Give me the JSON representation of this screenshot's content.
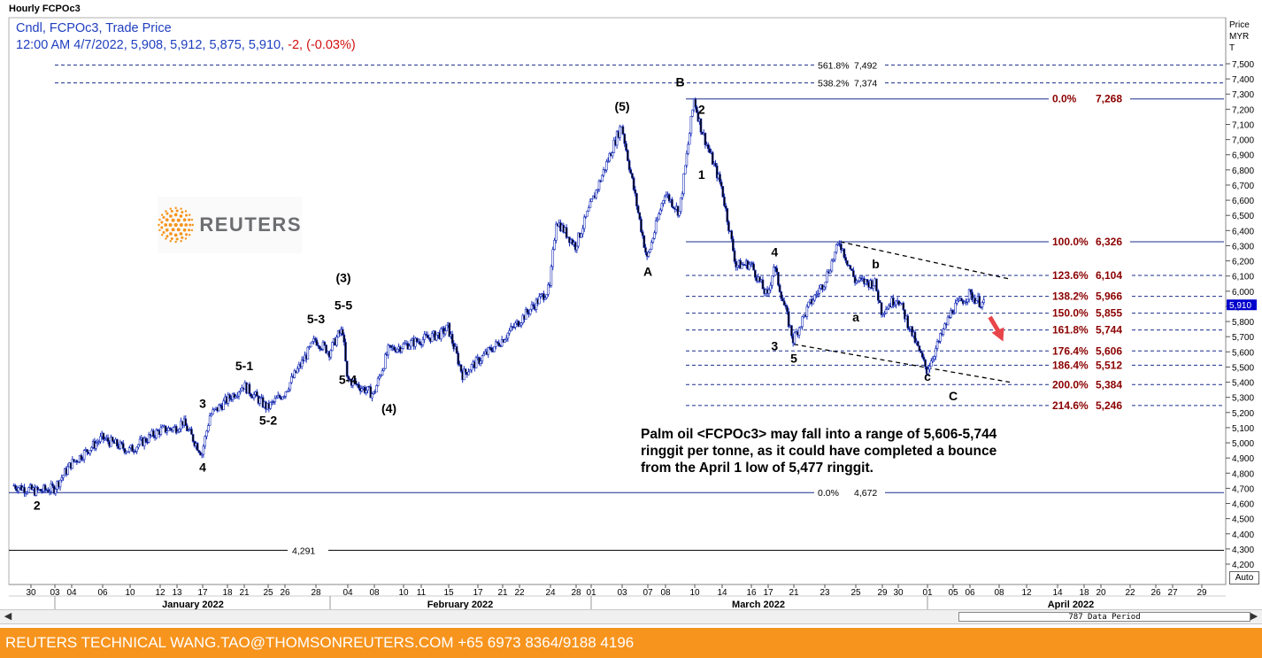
{
  "header": {
    "window_title": "Hourly FCPOc3",
    "line1": "Cndl, FCPOc3, Trade Price",
    "line2_values": "12:00 AM 4/7/2022, 5,908, 5,912, 5,875, 5,910,",
    "line2_change": " -2, (-0.03%)"
  },
  "price_axis_header": [
    "Price",
    "MYR",
    "T"
  ],
  "logo_text": "REUTERS",
  "annotation_lines": [
    "Palm oil <FCPOc3> may fall into a range of 5,606-5,744",
    "ringgit per tonne, as it could have completed a bounce",
    "from the April 1 low of 5,477 ringgit."
  ],
  "footer_text": "REUTERS TECHNICAL  WANG.TAO@THOMSONREUTERS.COM  +65 6973 8364/9188 4196",
  "scroll": {
    "period_label": "787 Data Period",
    "left_arrow": "◀",
    "right_arrow": "▶"
  },
  "auto_label": "Auto",
  "colors": {
    "candle": "#1a2fb8",
    "fib_label": "#8b0000",
    "footer": "#f7941d",
    "current_price_box": "#0000cc",
    "arrow": "#e8454a"
  },
  "chart_data": {
    "type": "candlestick",
    "interval": "hourly",
    "symbol": "FCPOc3",
    "y_unit": "MYR/T",
    "ylim": [
      4100,
      7650
    ],
    "y_ticks": [
      4200,
      4300,
      4400,
      4500,
      4600,
      4700,
      4800,
      4900,
      5000,
      5100,
      5200,
      5300,
      5400,
      5500,
      5600,
      5700,
      5800,
      5900,
      6000,
      6100,
      6200,
      6300,
      6400,
      6500,
      6600,
      6700,
      6800,
      6900,
      7000,
      7100,
      7200,
      7300,
      7400,
      7500
    ],
    "y_tick_labels": [
      "4,200",
      "4,300",
      "4,400",
      "4,500",
      "4,600",
      "4,700",
      "4,800",
      "4,900",
      "5,000",
      "5,100",
      "5,200",
      "5,300",
      "5,400",
      "5,500",
      "5,600",
      "5,700",
      "5,800",
      "5,900",
      "6,000",
      "6,100",
      "6,200",
      "6,300",
      "6,400",
      "6,500",
      "6,600",
      "6,700",
      "6,800",
      "6,900",
      "7,000",
      "7,100",
      "7,200",
      "7,300",
      "7,400",
      "7,500"
    ],
    "current_price": {
      "value": 5910,
      "label": "5,910"
    },
    "x_day_ticks": [
      "30",
      "03",
      "04",
      "06",
      "10",
      "12",
      "13",
      "17",
      "18",
      "21",
      "25",
      "26",
      "28",
      "04",
      "08",
      "10",
      "11",
      "15",
      "17",
      "21",
      "22",
      "24",
      "28",
      "01",
      "03",
      "07",
      "08",
      "10",
      "14",
      "16",
      "17",
      "21",
      "23",
      "25",
      "29",
      "30",
      "01",
      "05",
      "06",
      "08",
      "12",
      "14",
      "18",
      "20",
      "22",
      "26",
      "27",
      "29"
    ],
    "x_month_labels": [
      "January 2022",
      "February 2022",
      "March 2022",
      "April 2022"
    ],
    "price_path": [
      {
        "date": "2021-12-30",
        "price": 4720
      },
      {
        "date": "2021-12-31",
        "price": 4680
      },
      {
        "date": "2022-01-03",
        "price": 4700
      },
      {
        "date": "2022-01-04",
        "price": 4860
      },
      {
        "date": "2022-01-06",
        "price": 5030
      },
      {
        "date": "2022-01-10",
        "price": 4950
      },
      {
        "date": "2022-01-12",
        "price": 5080
      },
      {
        "date": "2022-01-13",
        "price": 5100
      },
      {
        "date": "2022-01-14",
        "price": 5140
      },
      {
        "date": "2022-01-17",
        "price": 4930
      },
      {
        "date": "2022-01-18",
        "price": 5180
      },
      {
        "date": "2022-01-21",
        "price": 5380
      },
      {
        "date": "2022-01-25",
        "price": 5230
      },
      {
        "date": "2022-01-26",
        "price": 5330
      },
      {
        "date": "2022-01-28",
        "price": 5680
      },
      {
        "date": "2022-01-31",
        "price": 5600
      },
      {
        "date": "2022-02-02",
        "price": 5710
      },
      {
        "date": "2022-02-03",
        "price": 5740
      },
      {
        "date": "2022-02-04",
        "price": 5420
      },
      {
        "date": "2022-02-08",
        "price": 5320
      },
      {
        "date": "2022-02-09",
        "price": 5610
      },
      {
        "date": "2022-02-14",
        "price": 5720
      },
      {
        "date": "2022-02-15",
        "price": 5760
      },
      {
        "date": "2022-02-16",
        "price": 5450
      },
      {
        "date": "2022-02-21",
        "price": 5680
      },
      {
        "date": "2022-02-24",
        "price": 6020
      },
      {
        "date": "2022-02-25",
        "price": 6470
      },
      {
        "date": "2022-02-28",
        "price": 6300
      },
      {
        "date": "2022-03-03",
        "price": 7100
      },
      {
        "date": "2022-03-04",
        "price": 6880
      },
      {
        "date": "2022-03-07",
        "price": 6210
      },
      {
        "date": "2022-03-08",
        "price": 6650
      },
      {
        "date": "2022-03-09",
        "price": 6520
      },
      {
        "date": "2022-03-10",
        "price": 7268
      },
      {
        "date": "2022-03-11",
        "price": 7080
      },
      {
        "date": "2022-03-14",
        "price": 6690
      },
      {
        "date": "2022-03-15",
        "price": 6170
      },
      {
        "date": "2022-03-16",
        "price": 6180
      },
      {
        "date": "2022-03-17",
        "price": 5960
      },
      {
        "date": "2022-03-18",
        "price": 6170
      },
      {
        "date": "2022-03-21",
        "price": 5680
      },
      {
        "date": "2022-03-22",
        "price": 5900
      },
      {
        "date": "2022-03-23",
        "price": 6060
      },
      {
        "date": "2022-03-24",
        "price": 6326
      },
      {
        "date": "2022-03-25",
        "price": 6070
      },
      {
        "date": "2022-03-28",
        "price": 6050
      },
      {
        "date": "2022-03-29",
        "price": 5870
      },
      {
        "date": "2022-03-30",
        "price": 5960
      },
      {
        "date": "2022-03-31",
        "price": 5720
      },
      {
        "date": "2022-04-01",
        "price": 5477
      },
      {
        "date": "2022-04-05",
        "price": 5880
      },
      {
        "date": "2022-04-06",
        "price": 5980
      },
      {
        "date": "2022-04-07",
        "price": 5910
      }
    ],
    "fib_levels_right": [
      {
        "pct": "0.0%",
        "price": 7268,
        "label": "7,268"
      },
      {
        "pct": "100.0%",
        "price": 6326,
        "label": "6,326"
      },
      {
        "pct": "123.6%",
        "price": 6104,
        "label": "6,104"
      },
      {
        "pct": "138.2%",
        "price": 5966,
        "label": "5,966"
      },
      {
        "pct": "150.0%",
        "price": 5855,
        "label": "5,855"
      },
      {
        "pct": "161.8%",
        "price": 5744,
        "label": "5,744"
      },
      {
        "pct": "176.4%",
        "price": 5606,
        "label": "5,606"
      },
      {
        "pct": "186.4%",
        "price": 5512,
        "label": "5,512"
      },
      {
        "pct": "200.0%",
        "price": 5384,
        "label": "5,384"
      },
      {
        "pct": "214.6%",
        "price": 5246,
        "label": "5,246"
      }
    ],
    "fib_levels_upper": [
      {
        "pct": "561.8%",
        "price": 7492,
        "label": "7,492"
      },
      {
        "pct": "538.2%",
        "price": 7374,
        "label": "7,374"
      }
    ],
    "base_fib": {
      "pct": "0.0%",
      "price": 4672,
      "label": "4,672"
    },
    "horizontal_line": {
      "price": 4291,
      "label": "4,291"
    },
    "trendlines": [
      {
        "from": {
          "date": "2022-03-24",
          "price": 6326
        },
        "to": {
          "date": "2022-04-08",
          "price": 6080
        }
      },
      {
        "from": {
          "date": "2022-03-21",
          "price": 5650
        },
        "to": {
          "date": "2022-04-08",
          "price": 5400
        }
      }
    ],
    "wave_labels": [
      {
        "text": "2",
        "date": "2021-12-31",
        "price": 4560
      },
      {
        "text": "3",
        "date": "2022-01-17",
        "price": 5230
      },
      {
        "text": "4",
        "date": "2022-01-17",
        "price": 4810
      },
      {
        "text": "5-1",
        "date": "2022-01-21",
        "price": 5480
      },
      {
        "text": "5-2",
        "date": "2022-01-25",
        "price": 5120
      },
      {
        "text": "5-3",
        "date": "2022-01-28",
        "price": 5790
      },
      {
        "text": "(3)",
        "date": "2022-02-03",
        "price": 6060
      },
      {
        "text": "5-5",
        "date": "2022-02-03",
        "price": 5880
      },
      {
        "text": "5-4",
        "date": "2022-02-04",
        "price": 5390
      },
      {
        "text": "(4)",
        "date": "2022-02-09",
        "price": 5200
      },
      {
        "text": "(5)",
        "date": "2022-03-03",
        "price": 7190
      },
      {
        "text": "A",
        "date": "2022-03-07",
        "price": 6100
      },
      {
        "text": "B",
        "date": "2022-03-09",
        "price": 7350
      },
      {
        "text": "2",
        "date": "2022-03-11",
        "price": 7170
      },
      {
        "text": "1",
        "date": "2022-03-11",
        "price": 6740
      },
      {
        "text": "4",
        "date": "2022-03-18",
        "price": 6230
      },
      {
        "text": "3",
        "date": "2022-03-18",
        "price": 5610
      },
      {
        "text": "5",
        "date": "2022-03-21",
        "price": 5530
      },
      {
        "text": "b",
        "date": "2022-03-28",
        "price": 6150
      },
      {
        "text": "a",
        "date": "2022-03-25",
        "price": 5800
      },
      {
        "text": "c",
        "date": "2022-04-01",
        "price": 5410
      },
      {
        "text": "C",
        "date": "2022-04-05",
        "price": 5280
      }
    ],
    "forecast_arrow": {
      "from": {
        "date": "2022-04-07",
        "price": 5830
      },
      "to": {
        "date": "2022-04-07",
        "price": 5680
      }
    }
  }
}
